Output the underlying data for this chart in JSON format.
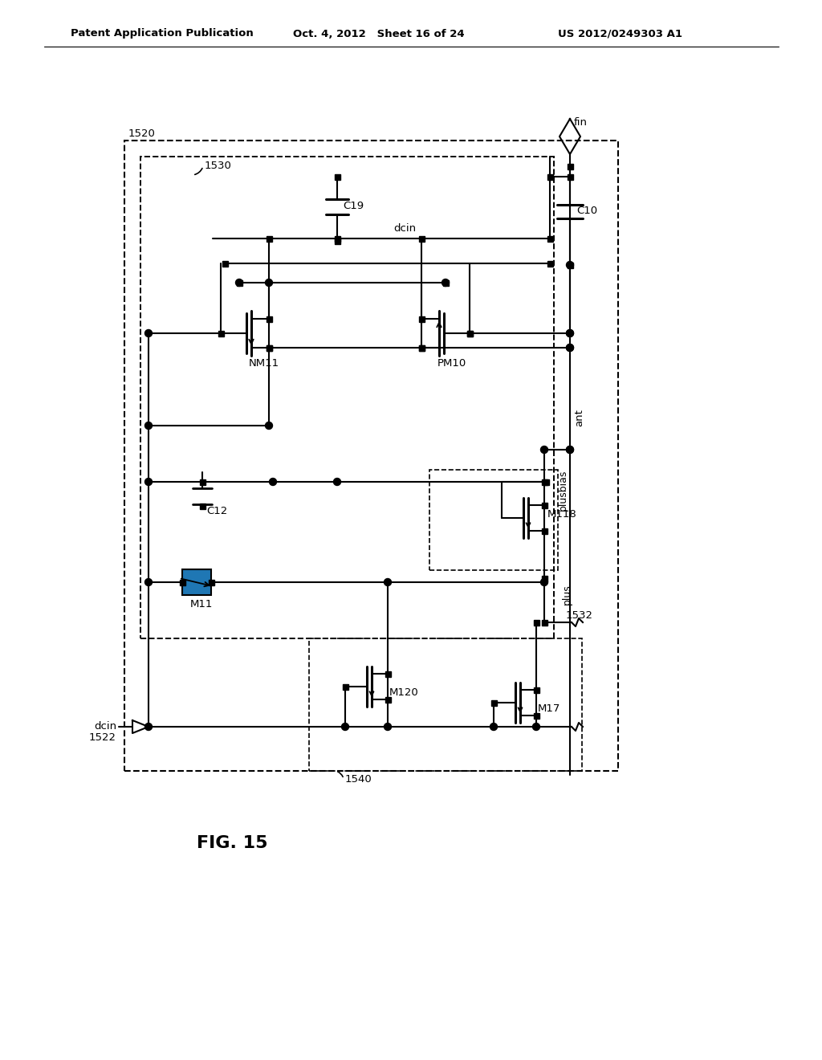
{
  "title_left": "Patent Application Publication",
  "title_mid": "Oct. 4, 2012   Sheet 16 of 24",
  "title_right": "US 2012/0249303 A1",
  "fig_label": "FIG. 15",
  "label_1520": "1520",
  "label_1530": "1530",
  "label_1532": "1532",
  "label_1522": "1522",
  "label_1540": "1540",
  "label_fin": "fin",
  "label_ant": "ant",
  "label_dcin": "dcin",
  "label_C19": "C19",
  "label_C10": "C10",
  "label_C12": "C12",
  "label_NM11": "NM11",
  "label_PM10": "PM10",
  "label_M118": "M118",
  "label_M11": "M11",
  "label_M120": "M120",
  "label_M17": "M17",
  "label_plusbias": "plusbias",
  "label_plus": "plus"
}
